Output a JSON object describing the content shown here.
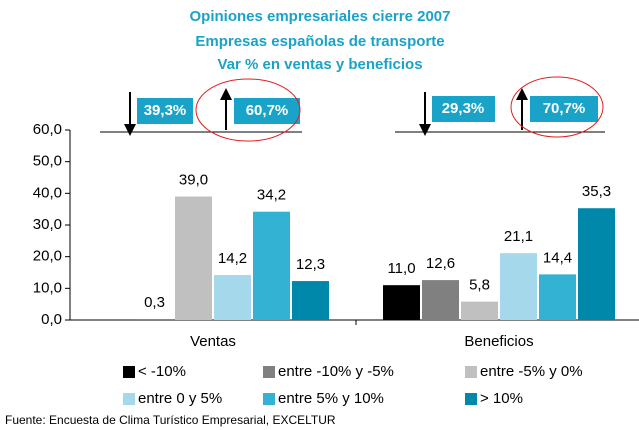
{
  "chart_data": {
    "type": "bar",
    "title": [
      "Opiniones empresariales cierre 2007",
      "Empresas españolas de transporte",
      "Var % en ventas y beneficios"
    ],
    "categories": [
      "Ventas",
      "Beneficios"
    ],
    "series": [
      {
        "name": "< -10%",
        "color": "#000000",
        "values": [
          null,
          11.0
        ],
        "value_labels": [
          null,
          "11,0"
        ]
      },
      {
        "name": "entre -10% y -5%",
        "color": "#808080",
        "values": [
          0.3,
          12.6
        ],
        "value_labels": [
          "0,3",
          "12,6"
        ]
      },
      {
        "name": "entre -5% y 0%",
        "color": "#c0c0c0",
        "values": [
          39.0,
          5.8
        ],
        "value_labels": [
          "39,0",
          "5,8"
        ]
      },
      {
        "name": "entre 0 y 5%",
        "color": "#a6d8ec",
        "values": [
          14.2,
          21.1
        ],
        "value_labels": [
          "14,2",
          "21,1"
        ]
      },
      {
        "name": "entre 5% y 10%",
        "color": "#33b2d4",
        "values": [
          34.2,
          14.4
        ],
        "value_labels": [
          "34,2",
          "14,4"
        ]
      },
      {
        "name": "> 10%",
        "color": "#0088aa",
        "values": [
          12.3,
          35.3
        ],
        "value_labels": [
          "12,3",
          "35,3"
        ]
      }
    ],
    "ylim": [
      0,
      60
    ],
    "yticks": [
      {
        "value": 0,
        "label": "0,0"
      },
      {
        "value": 10,
        "label": "10,0"
      },
      {
        "value": 20,
        "label": "20,0"
      },
      {
        "value": 30,
        "label": "30,0"
      },
      {
        "value": 40,
        "label": "40,0"
      },
      {
        "value": 50,
        "label": "50,0"
      },
      {
        "value": 60,
        "label": "60,0"
      }
    ],
    "annotations": [
      "39,3%",
      "60,7%",
      "29,3%",
      "70,7%"
    ],
    "source": "Fuente: Encuesta de Clima Turístico Empresarial, EXCELTUR"
  }
}
